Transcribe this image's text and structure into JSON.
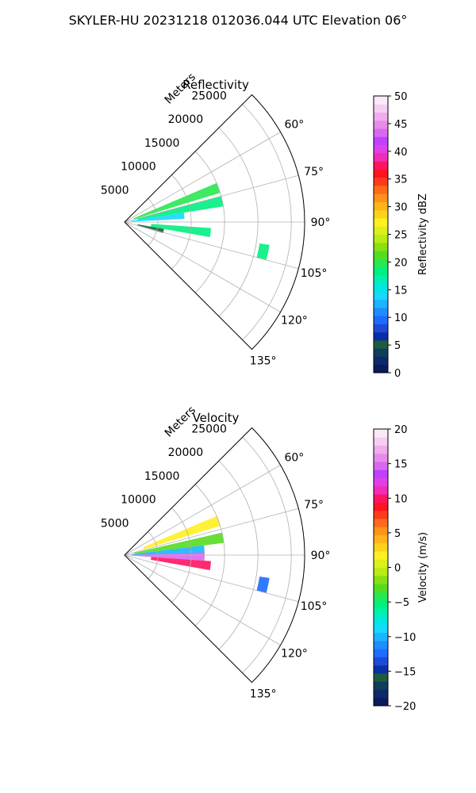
{
  "figure": {
    "suptitle": "SKYLER-HU  20231218  012036.044 UTC Elevation 06°"
  },
  "chart_data": [
    {
      "type": "heatmap",
      "subtype": "polar-sector-radar",
      "title": "Reflectivity",
      "radial_label": "Meters",
      "radial_ticks": [
        5000,
        10000,
        15000,
        20000,
        25000
      ],
      "radial_tick_labels": [
        "5000",
        "10000",
        "15000",
        "20000",
        "25000"
      ],
      "rlim": [
        0,
        27000
      ],
      "angle_range_deg": [
        45,
        135
      ],
      "angle_ticks_deg": [
        60,
        75,
        90,
        105,
        120,
        135
      ],
      "angle_tick_labels": [
        "60°",
        "75°",
        "90°",
        "105°",
        "120°",
        "135°"
      ],
      "grid": true,
      "colorbar": {
        "label": "Reflectivity dBZ",
        "range": [
          0,
          50
        ],
        "ticks": [
          0,
          5,
          10,
          15,
          20,
          25,
          30,
          35,
          40,
          45,
          50
        ],
        "tick_labels": [
          "0",
          "5",
          "10",
          "15",
          "20",
          "25",
          "30",
          "35",
          "40",
          "45",
          "50"
        ],
        "colors": [
          "#0a1a5c",
          "#0c2a6b",
          "#103d5a",
          "#1d5c3e",
          "#0b2fa8",
          "#1e4ad8",
          "#1b6cff",
          "#1f8cff",
          "#19b5ff",
          "#15d9ff",
          "#00e6e0",
          "#00f0b0",
          "#00f080",
          "#28e850",
          "#55dc22",
          "#8ae010",
          "#b8ec14",
          "#dcf01a",
          "#fff020",
          "#ffd21a",
          "#ffb418",
          "#ff9218",
          "#ff6a18",
          "#ff3a1c",
          "#ff1420",
          "#ff1460",
          "#f02cb8",
          "#e040e8",
          "#c040ff",
          "#d868f0",
          "#e88ae8",
          "#f0acec",
          "#f6cef2",
          "#fbe8f8"
        ]
      },
      "echo_regions": [
        {
          "angle_deg": 70,
          "r_start_m": 1500,
          "r_end_m": 15000,
          "value": 20
        },
        {
          "angle_deg": 78,
          "r_start_m": 2000,
          "r_end_m": 15000,
          "value": 18
        },
        {
          "angle_deg": 84,
          "r_start_m": 1000,
          "r_end_m": 9000,
          "value": 14
        },
        {
          "angle_deg": 97,
          "r_start_m": 4000,
          "r_end_m": 13000,
          "value": 19
        },
        {
          "angle_deg": 103,
          "r_start_m": 2000,
          "r_end_m": 6000,
          "value": 5
        },
        {
          "angle_deg": 102,
          "r_start_m": 20500,
          "r_end_m": 22000,
          "value": 18
        }
      ]
    },
    {
      "type": "heatmap",
      "subtype": "polar-sector-radar",
      "title": "Velocity",
      "radial_label": "Meters",
      "radial_ticks": [
        5000,
        10000,
        15000,
        20000,
        25000
      ],
      "radial_tick_labels": [
        "5000",
        "10000",
        "15000",
        "20000",
        "25000"
      ],
      "rlim": [
        0,
        27000
      ],
      "angle_range_deg": [
        45,
        135
      ],
      "angle_ticks_deg": [
        60,
        75,
        90,
        105,
        120,
        135
      ],
      "angle_tick_labels": [
        "60°",
        "75°",
        "90°",
        "105°",
        "120°",
        "135°"
      ],
      "grid": true,
      "colorbar": {
        "label": "Velocity (m/s)",
        "range": [
          -20,
          20
        ],
        "ticks": [
          -20,
          -15,
          -10,
          -5,
          0,
          5,
          10,
          15,
          20
        ],
        "tick_labels": [
          "−20",
          "−15",
          "−10",
          "−5",
          "0",
          "5",
          "10",
          "15",
          "20"
        ],
        "colors": [
          "#0a1a5c",
          "#0c2a6b",
          "#103d5a",
          "#1d5c3e",
          "#0b2fa8",
          "#1e4ad8",
          "#1b6cff",
          "#1f8cff",
          "#19b5ff",
          "#15d9ff",
          "#00e6e0",
          "#00f0b0",
          "#00f080",
          "#28e850",
          "#55dc22",
          "#8ae010",
          "#b8ec14",
          "#dcf01a",
          "#fff020",
          "#ffd21a",
          "#ffb418",
          "#ff9218",
          "#ff6a18",
          "#ff3a1c",
          "#ff1420",
          "#ff1460",
          "#f02cb8",
          "#e040e8",
          "#c040ff",
          "#d868f0",
          "#e88ae8",
          "#f0acec",
          "#f6cef2",
          "#fbe8f8"
        ]
      },
      "echo_regions": [
        {
          "angle_deg": 70,
          "r_start_m": 3000,
          "r_end_m": 15000,
          "value": 2
        },
        {
          "angle_deg": 80,
          "r_start_m": 1500,
          "r_end_m": 15000,
          "value": -3
        },
        {
          "angle_deg": 86,
          "r_start_m": 1000,
          "r_end_m": 12000,
          "value": -10
        },
        {
          "angle_deg": 91,
          "r_start_m": 1000,
          "r_end_m": 12000,
          "value": 15
        },
        {
          "angle_deg": 97,
          "r_start_m": 4000,
          "r_end_m": 13000,
          "value": 10
        },
        {
          "angle_deg": 102,
          "r_start_m": 20500,
          "r_end_m": 22000,
          "value": -12
        }
      ]
    }
  ]
}
